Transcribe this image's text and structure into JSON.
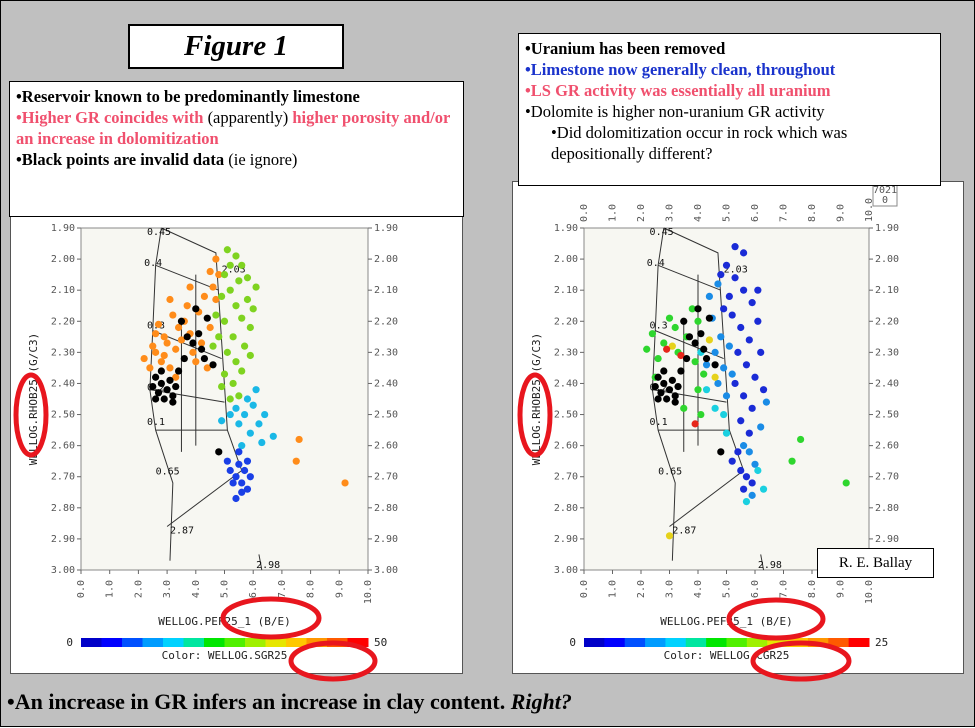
{
  "figure_title": "Figure 1",
  "left_box": {
    "line1": "•Reservoir known to be predominantly limestone",
    "line2_a": "•Higher GR coincides with",
    "line2_b": " (apparently) ",
    "line2_c": "higher porosity and/or an increase in  dolomitization",
    "line3_a": "•Black  points are invalid data",
    "line3_b": " (ie ignore)"
  },
  "right_box": {
    "line1": "•Uranium has been removed",
    "line2": "•Limestone now generally clean, throughout",
    "line3": "•LS GR activity was essentially all uranium",
    "line4": "•Dolomite is higher non-uranium GR activity",
    "line5": "•Did dolomitization occur in rock which was depositionally different?"
  },
  "signature": "R. E. Ballay",
  "bottom_text_a": "•An increase in GR infers an increase in clay content. ",
  "bottom_text_b": "Right?",
  "corner_label": "7021",
  "corner_label_sub": "0",
  "colors": {
    "background": "#c0c0c0",
    "plot_bg": "#f7f7f2",
    "invalid": "#000000",
    "highlight_ring": "#e8161e",
    "colorbar": [
      "#0000c8",
      "#0000ff",
      "#0050ff",
      "#009cff",
      "#00d2ff",
      "#00e6a0",
      "#00e600",
      "#50f000",
      "#a0f000",
      "#e6e600",
      "#ffc800",
      "#ff9600",
      "#ff5a00",
      "#ff0000"
    ]
  },
  "chart_data": [
    {
      "type": "scatter",
      "title": "",
      "xlabel": "WELLOG.PEF25_1 (B/E)",
      "ylabel": "WELLOG.RHOB25 (G/C3)",
      "xlim": [
        0,
        10
      ],
      "ylim": [
        3.0,
        1.9
      ],
      "x_ticks": [
        "0.0",
        "1.0",
        "2.0",
        "3.0",
        "4.0",
        "5.0",
        "6.0",
        "7.0",
        "8.0",
        "9.0",
        "10.0"
      ],
      "y_ticks": [
        "1.90",
        "2.00",
        "2.10",
        "2.20",
        "2.30",
        "2.40",
        "2.50",
        "2.60",
        "2.70",
        "2.80",
        "2.90",
        "3.00"
      ],
      "grid": false,
      "colorbar": {
        "label": "Color: WELLOG.SGR25",
        "min": "0",
        "max": "50"
      },
      "overlay_labels": [
        "0.45",
        "0.4",
        "0.3",
        "0.2",
        "0.1",
        "0.65",
        "2.03",
        "2.87",
        "2.98"
      ],
      "series": [
        {
          "group": "high-gr",
          "color": "#ff8c1a",
          "points": [
            [
              3.0,
              2.27
            ],
            [
              3.3,
              2.29
            ],
            [
              2.6,
              2.3
            ],
            [
              2.9,
              2.25
            ],
            [
              3.5,
              2.26
            ],
            [
              3.8,
              2.24
            ],
            [
              2.4,
              2.35
            ],
            [
              2.8,
              2.33
            ],
            [
              3.1,
              2.35
            ],
            [
              3.9,
              2.3
            ],
            [
              4.2,
              2.27
            ],
            [
              4.5,
              2.22
            ],
            [
              3.6,
              2.2
            ],
            [
              3.2,
              2.18
            ],
            [
              2.7,
              2.21
            ],
            [
              4.1,
              2.17
            ],
            [
              3.7,
              2.15
            ],
            [
              4.3,
              2.12
            ],
            [
              4.6,
              2.09
            ],
            [
              3.4,
              2.22
            ],
            [
              2.5,
              2.28
            ],
            [
              4.0,
              2.33
            ],
            [
              4.4,
              2.35
            ],
            [
              3.3,
              2.38
            ],
            [
              2.9,
              2.31
            ],
            [
              4.7,
              2.13
            ],
            [
              4.8,
              2.05
            ],
            [
              4.5,
              2.04
            ],
            [
              4.7,
              2.0
            ],
            [
              3.8,
              2.09
            ],
            [
              3.1,
              2.13
            ],
            [
              9.2,
              2.72
            ],
            [
              7.5,
              2.65
            ],
            [
              7.6,
              2.58
            ],
            [
              2.2,
              2.32
            ],
            [
              2.6,
              2.24
            ]
          ]
        },
        {
          "group": "mid-gr",
          "color": "#7fd320",
          "points": [
            [
              5.0,
              2.05
            ],
            [
              5.2,
              2.1
            ],
            [
              5.4,
              2.15
            ],
            [
              5.0,
              2.2
            ],
            [
              5.3,
              2.25
            ],
            [
              5.6,
              2.19
            ],
            [
              5.8,
              2.13
            ],
            [
              5.5,
              2.07
            ],
            [
              5.1,
              2.3
            ],
            [
              5.4,
              2.33
            ],
            [
              5.7,
              2.28
            ],
            [
              5.9,
              2.22
            ],
            [
              6.0,
              2.16
            ],
            [
              4.9,
              2.12
            ],
            [
              5.2,
              2.02
            ],
            [
              5.6,
              2.02
            ],
            [
              5.8,
              2.06
            ],
            [
              4.8,
              2.25
            ],
            [
              5.0,
              2.37
            ],
            [
              5.3,
              2.4
            ],
            [
              5.6,
              2.36
            ],
            [
              5.9,
              2.31
            ],
            [
              5.1,
              1.97
            ],
            [
              5.4,
              1.99
            ],
            [
              4.7,
              2.18
            ],
            [
              6.1,
              2.09
            ],
            [
              4.6,
              2.28
            ],
            [
              5.5,
              2.44
            ],
            [
              5.2,
              2.45
            ],
            [
              4.9,
              2.41
            ]
          ]
        },
        {
          "group": "low-gr",
          "color": "#1ab8e6",
          "points": [
            [
              5.4,
              2.48
            ],
            [
              5.7,
              2.5
            ],
            [
              6.0,
              2.47
            ],
            [
              5.5,
              2.53
            ],
            [
              5.9,
              2.56
            ],
            [
              6.2,
              2.53
            ],
            [
              5.6,
              2.6
            ],
            [
              6.3,
              2.59
            ],
            [
              5.8,
              2.45
            ],
            [
              6.1,
              2.42
            ],
            [
              6.4,
              2.5
            ],
            [
              6.7,
              2.57
            ],
            [
              5.2,
              2.5
            ],
            [
              4.9,
              2.52
            ]
          ]
        },
        {
          "group": "lowest-gr",
          "color": "#1a3fe6",
          "points": [
            [
              5.2,
              2.68
            ],
            [
              5.4,
              2.7
            ],
            [
              5.6,
              2.72
            ],
            [
              5.8,
              2.74
            ],
            [
              5.5,
              2.66
            ],
            [
              5.3,
              2.72
            ],
            [
              5.7,
              2.68
            ],
            [
              5.9,
              2.7
            ],
            [
              5.6,
              2.75
            ],
            [
              5.4,
              2.77
            ],
            [
              5.1,
              2.65
            ],
            [
              5.8,
              2.65
            ],
            [
              5.5,
              2.62
            ]
          ]
        },
        {
          "group": "invalid",
          "color": "#000000",
          "points": [
            [
              2.6,
              2.38
            ],
            [
              2.8,
              2.4
            ],
            [
              3.0,
              2.42
            ],
            [
              2.7,
              2.43
            ],
            [
              2.9,
              2.45
            ],
            [
              3.1,
              2.39
            ],
            [
              3.3,
              2.41
            ],
            [
              2.5,
              2.41
            ],
            [
              3.2,
              2.44
            ],
            [
              3.4,
              2.36
            ],
            [
              3.6,
              2.32
            ],
            [
              3.9,
              2.27
            ],
            [
              4.1,
              2.24
            ],
            [
              4.3,
              2.32
            ],
            [
              4.6,
              2.34
            ],
            [
              3.5,
              2.2
            ],
            [
              4.0,
              2.16
            ],
            [
              4.4,
              2.19
            ],
            [
              2.8,
              2.36
            ],
            [
              4.8,
              2.62
            ],
            [
              3.2,
              2.46
            ],
            [
              2.6,
              2.45
            ],
            [
              4.2,
              2.29
            ],
            [
              3.7,
              2.25
            ]
          ]
        }
      ]
    },
    {
      "type": "scatter",
      "title": "",
      "xlabel": "WELLOG.PEF25_1 (B/E)",
      "ylabel": "WELLOG.RHOB25 (G/C3)",
      "xlim": [
        0,
        10
      ],
      "ylim": [
        3.0,
        1.9
      ],
      "x_ticks": [
        "0.0",
        "1.0",
        "2.0",
        "3.0",
        "4.0",
        "5.0",
        "6.0",
        "7.0",
        "8.0",
        "9.0",
        "10.0"
      ],
      "y_ticks": [
        "1.90",
        "2.00",
        "2.10",
        "2.20",
        "2.30",
        "2.40",
        "2.50",
        "2.60",
        "2.70",
        "2.80",
        "2.90",
        "3.00"
      ],
      "grid": false,
      "colorbar": {
        "label": "Color: WELLOG.CGR25",
        "min": "0",
        "max": "25"
      },
      "overlay_labels": [
        "0.45",
        "0.4",
        "0.3",
        "0.2",
        "0.1",
        "0.65",
        "2.03",
        "2.87",
        "2.98"
      ],
      "series": [
        {
          "group": "dark-blue",
          "color": "#1a2bd6",
          "points": [
            [
              5.0,
              2.02
            ],
            [
              5.3,
              2.06
            ],
            [
              5.6,
              2.1
            ],
            [
              5.9,
              2.14
            ],
            [
              5.2,
              2.18
            ],
            [
              5.5,
              2.22
            ],
            [
              5.8,
              2.26
            ],
            [
              6.1,
              2.2
            ],
            [
              5.4,
              2.3
            ],
            [
              5.7,
              2.34
            ],
            [
              6.0,
              2.38
            ],
            [
              5.3,
              2.4
            ],
            [
              5.6,
              2.44
            ],
            [
              5.9,
              2.48
            ],
            [
              5.5,
              2.52
            ],
            [
              5.8,
              2.56
            ],
            [
              5.1,
              2.12
            ],
            [
              4.9,
              2.16
            ],
            [
              5.6,
              1.98
            ],
            [
              5.3,
              1.96
            ],
            [
              6.2,
              2.3
            ],
            [
              6.3,
              2.42
            ],
            [
              5.2,
              2.65
            ],
            [
              5.5,
              2.68
            ],
            [
              5.7,
              2.7
            ],
            [
              5.9,
              2.72
            ],
            [
              5.6,
              2.74
            ],
            [
              5.4,
              2.62
            ],
            [
              6.1,
              2.1
            ],
            [
              4.8,
              2.05
            ]
          ]
        },
        {
          "group": "mid-blue",
          "color": "#1a8ce6",
          "points": [
            [
              4.8,
              2.25
            ],
            [
              5.1,
              2.28
            ],
            [
              4.6,
              2.3
            ],
            [
              4.9,
              2.35
            ],
            [
              5.2,
              2.37
            ],
            [
              4.7,
              2.4
            ],
            [
              5.0,
              2.44
            ],
            [
              4.5,
              2.19
            ],
            [
              4.4,
              2.12
            ],
            [
              4.7,
              2.08
            ],
            [
              5.8,
              2.62
            ],
            [
              6.0,
              2.66
            ],
            [
              5.6,
              2.6
            ],
            [
              6.2,
              2.54
            ],
            [
              6.4,
              2.46
            ],
            [
              4.3,
              2.34
            ],
            [
              5.9,
              2.76
            ]
          ]
        },
        {
          "group": "cyan",
          "color": "#1ad0e0",
          "points": [
            [
              4.1,
              2.3
            ],
            [
              4.3,
              2.42
            ],
            [
              4.6,
              2.48
            ],
            [
              5.0,
              2.56
            ],
            [
              6.1,
              2.68
            ],
            [
              6.3,
              2.74
            ],
            [
              4.9,
              2.5
            ],
            [
              5.7,
              2.78
            ]
          ]
        },
        {
          "group": "green",
          "color": "#2ed62e",
          "points": [
            [
              2.4,
              2.24
            ],
            [
              2.8,
              2.27
            ],
            [
              3.2,
              2.22
            ],
            [
              3.6,
              2.25
            ],
            [
              4.0,
              2.2
            ],
            [
              3.3,
              2.3
            ],
            [
              2.6,
              2.32
            ],
            [
              3.9,
              2.33
            ],
            [
              4.2,
              2.37
            ],
            [
              2.5,
              2.38
            ],
            [
              3.0,
              2.19
            ],
            [
              3.8,
              2.16
            ],
            [
              4.0,
              2.42
            ],
            [
              2.2,
              2.29
            ],
            [
              9.2,
              2.72
            ],
            [
              7.6,
              2.58
            ],
            [
              7.3,
              2.65
            ],
            [
              3.5,
              2.48
            ],
            [
              4.1,
              2.5
            ]
          ]
        },
        {
          "group": "yellow",
          "color": "#e6d21a",
          "points": [
            [
              4.4,
              2.26
            ],
            [
              4.6,
              2.38
            ],
            [
              3.1,
              2.28
            ],
            [
              3.0,
              2.89
            ]
          ]
        },
        {
          "group": "red",
          "color": "#e6261a",
          "points": [
            [
              2.9,
              2.29
            ],
            [
              3.9,
              2.53
            ],
            [
              3.4,
              2.31
            ]
          ]
        },
        {
          "group": "invalid",
          "color": "#000000",
          "points": [
            [
              2.6,
              2.38
            ],
            [
              2.8,
              2.4
            ],
            [
              3.0,
              2.42
            ],
            [
              2.7,
              2.43
            ],
            [
              2.9,
              2.45
            ],
            [
              3.1,
              2.39
            ],
            [
              3.3,
              2.41
            ],
            [
              2.5,
              2.41
            ],
            [
              3.2,
              2.44
            ],
            [
              3.4,
              2.36
            ],
            [
              3.6,
              2.32
            ],
            [
              3.9,
              2.27
            ],
            [
              4.1,
              2.24
            ],
            [
              4.3,
              2.32
            ],
            [
              4.6,
              2.34
            ],
            [
              3.5,
              2.2
            ],
            [
              4.0,
              2.16
            ],
            [
              4.4,
              2.19
            ],
            [
              2.8,
              2.36
            ],
            [
              4.8,
              2.62
            ],
            [
              3.2,
              2.46
            ],
            [
              2.6,
              2.45
            ],
            [
              4.2,
              2.29
            ],
            [
              3.7,
              2.25
            ]
          ]
        }
      ]
    }
  ]
}
